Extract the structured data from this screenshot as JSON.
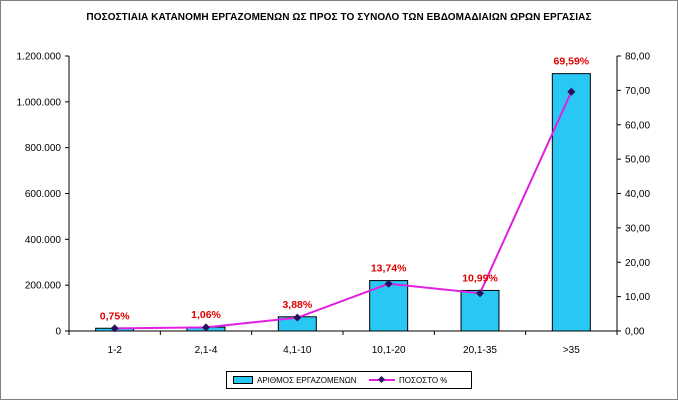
{
  "chart_data": {
    "type": "bar+line",
    "title": "ΠΟΣΟΣΤΙΑΙΑ ΚΑΤΑΝΟΜΗ ΕΡΓΑΖΟΜΕΝΩΝ ΩΣ ΠΡΟΣ ΤΟ ΣΥΝΟΛΟ ΤΩΝ ΕΒΔΟΜΑΔΙΑΙΩΝ ΩΡΩΝ ΕΡΓΑΣΙΑΣ",
    "categories": [
      "1-2",
      "2,1-4",
      "4,1-10",
      "10,1-20",
      "20,1-35",
      ">35"
    ],
    "series": [
      {
        "name": "ΑΡΙΘΜΟΣ ΕΡΓΑΖΟΜΕΝΩΝ",
        "type": "bar",
        "axis": "left",
        "color": "#29c8f4",
        "values": [
          12000,
          17000,
          62000,
          220000,
          177000,
          1123000
        ]
      },
      {
        "name": "ΠΟΣΟΣΤΟ %",
        "type": "line",
        "axis": "right",
        "color": "#e020e0",
        "marker_color": "#2a0f5c",
        "values": [
          0.75,
          1.06,
          3.88,
          13.74,
          10.99,
          69.59
        ],
        "data_labels": [
          "0,75%",
          "1,06%",
          "3,88%",
          "13,74%",
          "10,99%",
          "69,59%"
        ]
      }
    ],
    "y_left": {
      "ylim": [
        0,
        1200000
      ],
      "tick_labels": [
        "0",
        "200.000",
        "400.000",
        "600.000",
        "800.000",
        "1.000.000",
        "1.200.000"
      ]
    },
    "y_right": {
      "ylim": [
        0,
        80
      ],
      "tick_labels": [
        "0,00",
        "10,00",
        "20,00",
        "30,00",
        "40,00",
        "50,00",
        "60,00",
        "70,00",
        "80,00"
      ]
    },
    "grid": false,
    "legend_position": "bottom"
  }
}
